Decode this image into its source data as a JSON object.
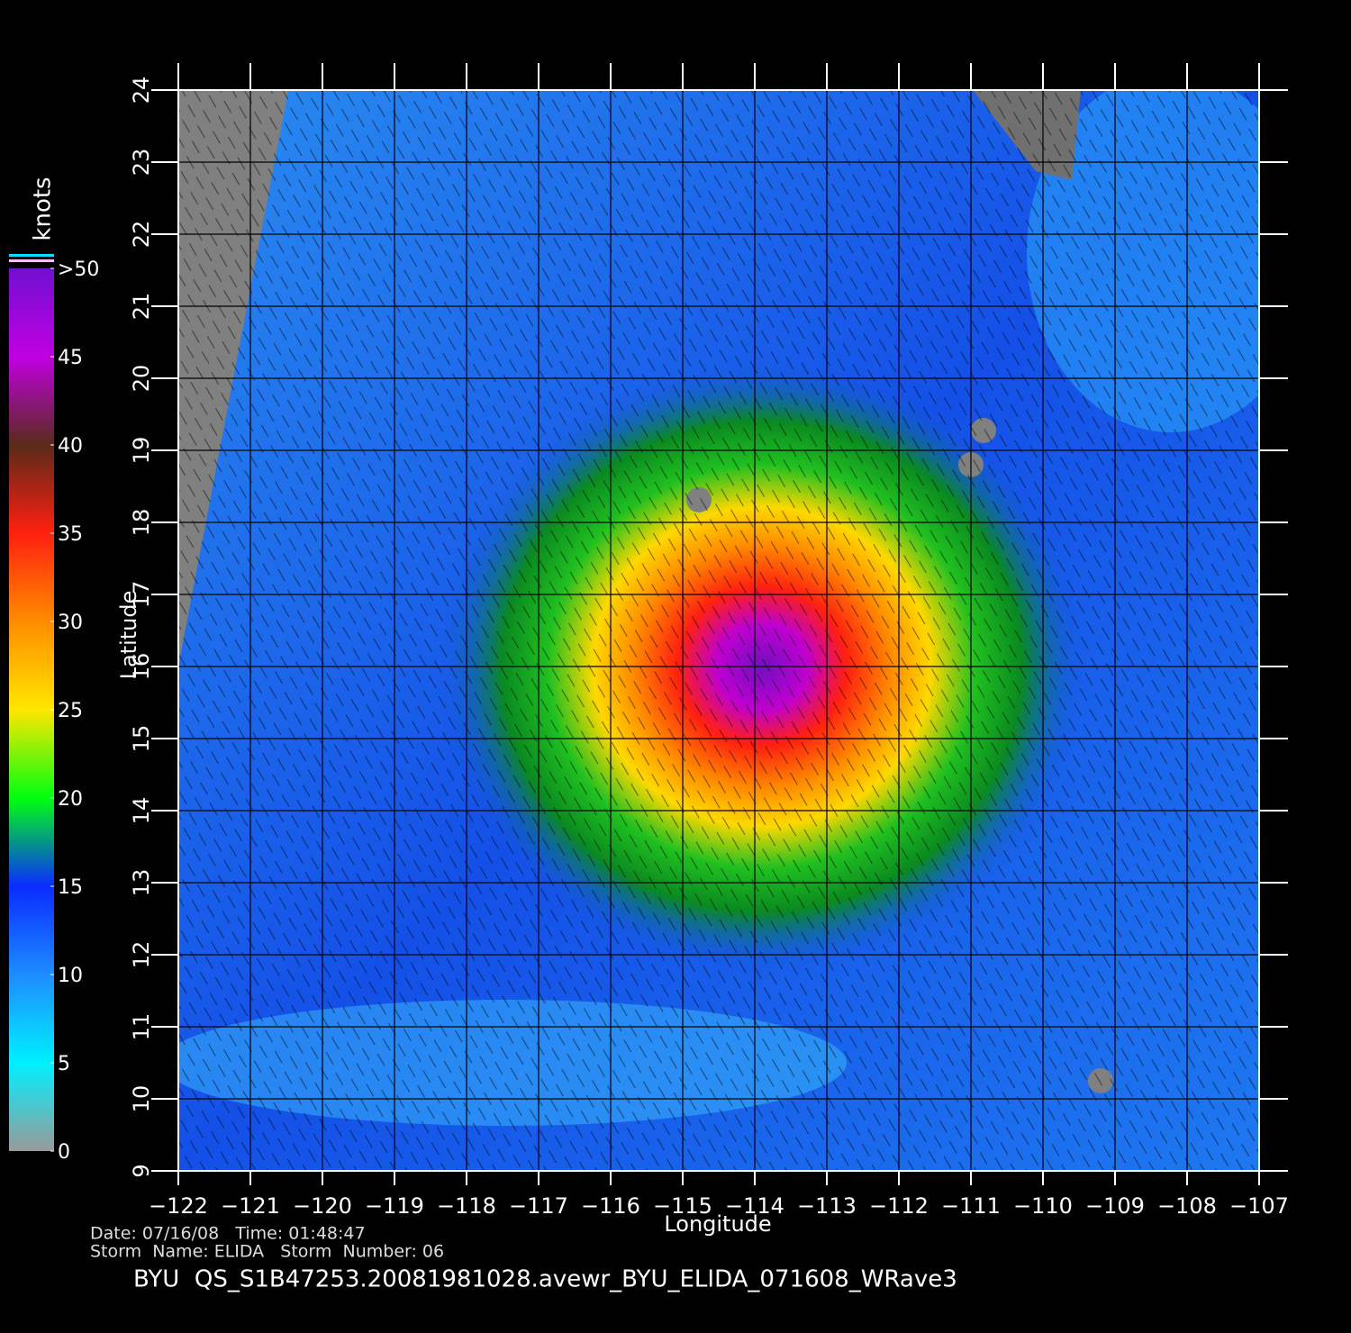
{
  "map": {
    "type": "wind-map",
    "xlabel": "Longitude",
    "ylabel": "Latitude",
    "xlim": [
      -122,
      -107
    ],
    "ylim": [
      9,
      24
    ],
    "xticks": [
      -122,
      -121,
      -120,
      -119,
      -118,
      -117,
      -116,
      -115,
      -114,
      -113,
      -112,
      -111,
      -110,
      -109,
      -108,
      -107
    ],
    "yticks": [
      9,
      10,
      11,
      12,
      13,
      14,
      15,
      16,
      17,
      18,
      19,
      20,
      21,
      22,
      23,
      24
    ],
    "grid": true,
    "colorbar": {
      "label": "knots",
      "ticks": [
        0,
        5,
        10,
        15,
        20,
        25,
        30,
        35,
        40,
        45,
        {
          "value": 50,
          "label": ">50"
        }
      ],
      "colors": [
        "#9a9a9a",
        "#00f0ff",
        "#1e8cff",
        "#0a2cff",
        "#00ff10",
        "#ffe600",
        "#ff8c00",
        "#ff2010",
        "#5a2a1a",
        "#c000e0",
        "#7010d0"
      ]
    },
    "info": [
      "Date: 07/16/08   Time: 01:48:47",
      "Storm  Name: ELIDA   Storm  Number: 06"
    ],
    "title": "BYU  QS_S1B47253.20081981028.avewr_BYU_ELIDA_071608_WRave3"
  }
}
